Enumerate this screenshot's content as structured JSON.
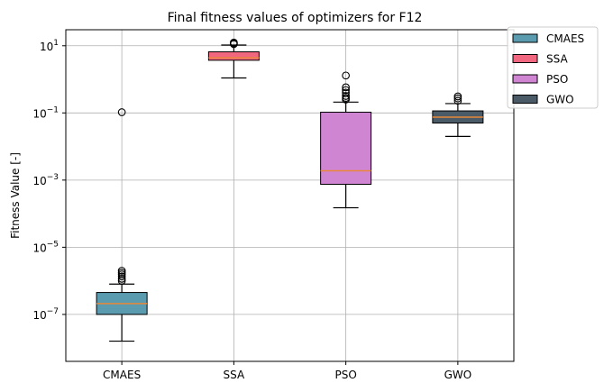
{
  "chart_data": {
    "type": "box",
    "title": "Final fitness values of optimizers for F12",
    "xlabel": "",
    "ylabel": "Fitness Value [-]",
    "yscale": "log",
    "ylim": [
      4e-09,
      30
    ],
    "yticks": [
      {
        "base": "10",
        "exp": "1",
        "value": 10
      },
      {
        "base": "10",
        "exp": "−1",
        "value": 0.1
      },
      {
        "base": "10",
        "exp": "−3",
        "value": 0.001
      },
      {
        "base": "10",
        "exp": "−5",
        "value": 1e-05
      },
      {
        "base": "10",
        "exp": "−7",
        "value": 1e-07
      }
    ],
    "grid": true,
    "legend_position": "outside-top-right",
    "median_color": "#e8883a",
    "categories": [
      "CMAES",
      "SSA",
      "PSO",
      "GWO"
    ],
    "series": [
      {
        "name": "CMAES",
        "color": "#5b9bb0",
        "whisker_low": 1.6e-08,
        "q1": 1e-07,
        "median": 2.1e-07,
        "q3": 4.5e-07,
        "whisker_high": 8e-07,
        "outliers": [
          0.105,
          2e-06,
          1.75e-06,
          1.55e-06,
          1.35e-06,
          1.15e-06,
          1e-06
        ]
      },
      {
        "name": "SSA",
        "color": "#f0677f",
        "whisker_low": 1.1,
        "q1": 3.7,
        "median": 4.4,
        "q3": 6.6,
        "whisker_high": 10.5,
        "outliers": [
          12.5,
          11.8,
          11.2
        ]
      },
      {
        "name": "PSO",
        "color": "#d085d3",
        "whisker_low": 0.00015,
        "q1": 0.00075,
        "median": 0.0019,
        "q3": 0.105,
        "whisker_high": 0.21,
        "outliers": [
          1.3,
          0.58,
          0.48,
          0.4,
          0.32,
          0.28,
          0.25
        ]
      },
      {
        "name": "GWO",
        "color": "#4a5a66",
        "whisker_low": 0.02,
        "q1": 0.05,
        "median": 0.075,
        "q3": 0.115,
        "whisker_high": 0.19,
        "outliers": [
          0.31,
          0.27,
          0.23
        ]
      }
    ]
  }
}
